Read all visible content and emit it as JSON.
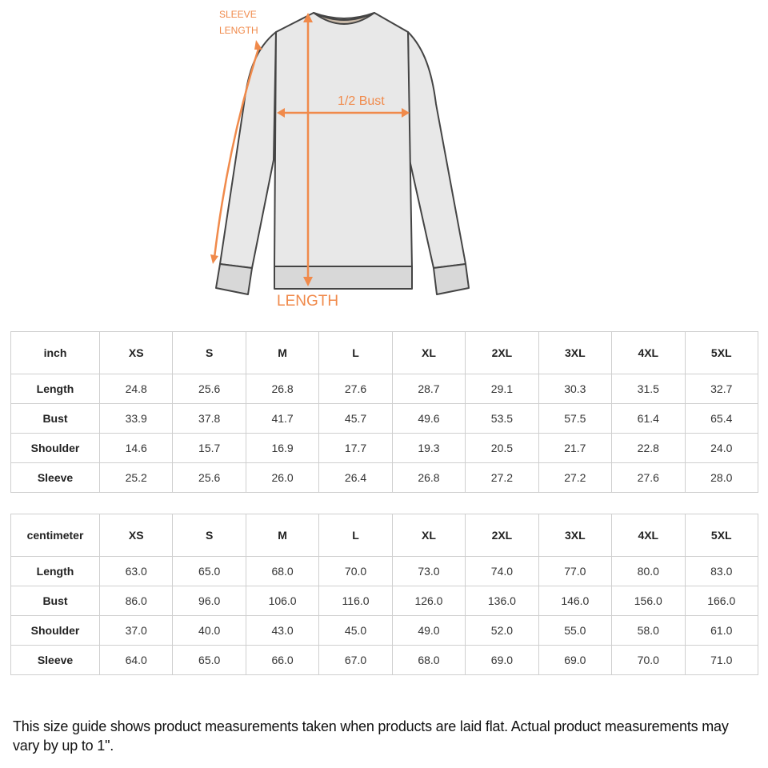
{
  "diagram": {
    "labels": {
      "sleeve_line1": "SLEEVE",
      "sleeve_line2": "LENGTH",
      "bust": "1/2 Bust",
      "length": "LENGTH"
    },
    "accent_color": "#f08a4b"
  },
  "sizes": [
    "XS",
    "S",
    "M",
    "L",
    "XL",
    "2XL",
    "3XL",
    "4XL",
    "5XL"
  ],
  "inch_table": {
    "unit": "inch",
    "rows": [
      {
        "label": "Length",
        "values": [
          "24.8",
          "25.6",
          "26.8",
          "27.6",
          "28.7",
          "29.1",
          "30.3",
          "31.5",
          "32.7"
        ]
      },
      {
        "label": "Bust",
        "values": [
          "33.9",
          "37.8",
          "41.7",
          "45.7",
          "49.6",
          "53.5",
          "57.5",
          "61.4",
          "65.4"
        ]
      },
      {
        "label": "Shoulder",
        "values": [
          "14.6",
          "15.7",
          "16.9",
          "17.7",
          "19.3",
          "20.5",
          "21.7",
          "22.8",
          "24.0"
        ]
      },
      {
        "label": "Sleeve",
        "values": [
          "25.2",
          "25.6",
          "26.0",
          "26.4",
          "26.8",
          "27.2",
          "27.2",
          "27.6",
          "28.0"
        ]
      }
    ]
  },
  "cm_table": {
    "unit": "centimeter",
    "rows": [
      {
        "label": "Length",
        "values": [
          "63.0",
          "65.0",
          "68.0",
          "70.0",
          "73.0",
          "74.0",
          "77.0",
          "80.0",
          "83.0"
        ]
      },
      {
        "label": "Bust",
        "values": [
          "86.0",
          "96.0",
          "106.0",
          "116.0",
          "126.0",
          "136.0",
          "146.0",
          "156.0",
          "166.0"
        ]
      },
      {
        "label": "Shoulder",
        "values": [
          "37.0",
          "40.0",
          "43.0",
          "45.0",
          "49.0",
          "52.0",
          "55.0",
          "58.0",
          "61.0"
        ]
      },
      {
        "label": "Sleeve",
        "values": [
          "64.0",
          "65.0",
          "66.0",
          "67.0",
          "68.0",
          "69.0",
          "69.0",
          "70.0",
          "71.0"
        ]
      }
    ]
  },
  "note": "This size guide shows product measurements taken when products are laid flat. Actual product measurements may vary by up to 1\"."
}
